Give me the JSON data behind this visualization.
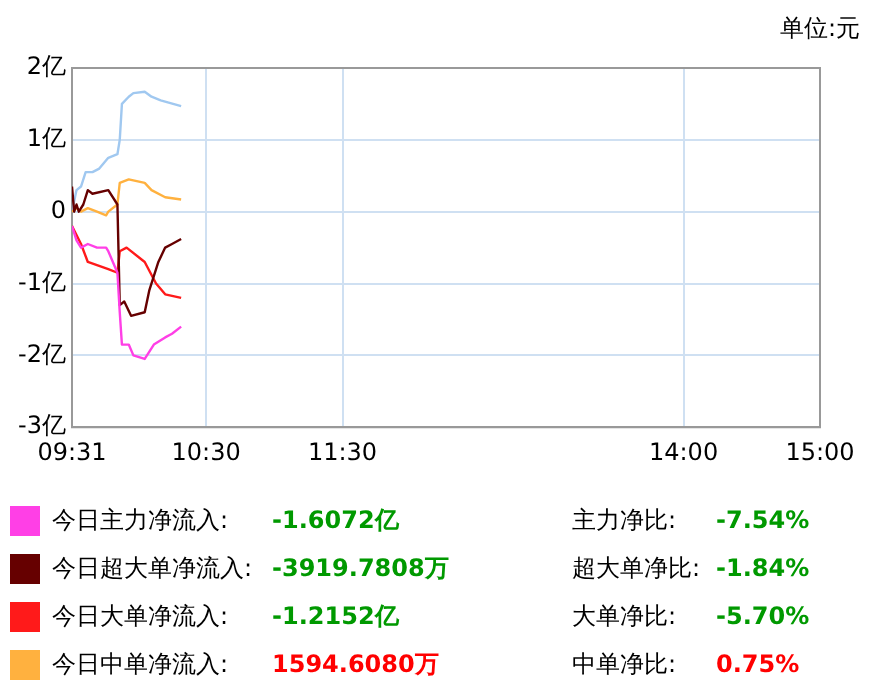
{
  "chart_data": {
    "type": "line",
    "xlim": [
      9.517,
      15
    ],
    "xticks": [
      {
        "value": 9.517,
        "label": "09:31"
      },
      {
        "value": 10.5,
        "label": "10:30"
      },
      {
        "value": 11.5,
        "label": "11:30"
      },
      {
        "value": 14,
        "label": "14:00"
      },
      {
        "value": 15,
        "label": "15:00"
      }
    ],
    "ylim": [
      -3,
      2
    ],
    "yticks": [
      {
        "value": 2,
        "label": "2亿"
      },
      {
        "value": 1,
        "label": "1亿"
      },
      0,
      {
        "value": -1,
        "label": "-1亿"
      },
      {
        "value": -2,
        "label": "-2亿"
      },
      {
        "value": -3,
        "label": "-3亿"
      }
    ],
    "grid": true,
    "legend": "bottom",
    "marker": "none",
    "line_style": "solid",
    "series": [
      {
        "name": "今日主力净流入:",
        "color": "#ff3fe6",
        "x": [
          9.517,
          9.55,
          9.583,
          9.633,
          9.7,
          9.767,
          9.783,
          9.85,
          9.867,
          9.883,
          9.933,
          9.967,
          10.05,
          10.117,
          10.2,
          10.25,
          10.317
        ],
        "values": [
          -0.2,
          -0.4,
          -0.5,
          -0.45,
          -0.5,
          -0.5,
          -0.55,
          -0.85,
          -1.4,
          -1.85,
          -1.85,
          -2,
          -2.05,
          -1.85,
          -1.75,
          -1.7,
          -1.6
        ]
      },
      {
        "name": "今日超大单净流入:",
        "color": "#660000",
        "x": [
          9.517,
          9.533,
          9.55,
          9.567,
          9.6,
          9.633,
          9.667,
          9.783,
          9.85,
          9.867,
          9.9,
          9.95,
          10.05,
          10.083,
          10.15,
          10.2,
          10.25,
          10.317
        ],
        "values": [
          0.35,
          0,
          0.1,
          0,
          0.1,
          0.3,
          0.25,
          0.3,
          0.1,
          -1.3,
          -1.25,
          -1.45,
          -1.4,
          -1.1,
          -0.7,
          -0.5,
          -0.45,
          -0.38
        ]
      },
      {
        "name": "今日大单净流入:",
        "color": "#ff1a1a",
        "x": [
          9.517,
          9.583,
          9.633,
          9.783,
          9.85,
          9.867,
          9.917,
          10.05,
          10.133,
          10.2,
          10.317
        ],
        "values": [
          -0.2,
          -0.45,
          -0.7,
          -0.8,
          -0.85,
          -0.55,
          -0.5,
          -0.7,
          -1,
          -1.15,
          -1.2
        ]
      },
      {
        "name": "今日中单净流入:",
        "color": "#ffb13f",
        "x": [
          9.517,
          9.55,
          9.583,
          9.633,
          9.7,
          9.767,
          9.783,
          9.85,
          9.867,
          9.933,
          10.05,
          10.1,
          10.2,
          10.317
        ],
        "values": [
          0,
          0.05,
          0,
          0.05,
          0,
          -0.05,
          0,
          0.1,
          0.4,
          0.45,
          0.4,
          0.3,
          0.2,
          0.17
        ]
      },
      {
        "color": "#a0c8f0",
        "x": [
          9.517,
          9.55,
          9.583,
          9.617,
          9.667,
          9.717,
          9.783,
          9.85,
          9.867,
          9.883,
          9.933,
          9.967,
          10.05,
          10.1,
          10.167,
          10.317
        ],
        "values": [
          0,
          0.3,
          0.35,
          0.55,
          0.55,
          0.6,
          0.75,
          0.8,
          1,
          1.5,
          1.6,
          1.65,
          1.67,
          1.6,
          1.55,
          1.47
        ]
      }
    ],
    "annotations": [
      "单位:元",
      "-1.6072亿",
      "主力净比:",
      "-7.54%",
      "-3919.7808万",
      "超大单净比:",
      "-1.84%",
      "-1.2152亿",
      "大单净比:",
      "-5.70%",
      "1594.6080万",
      "中单净比:",
      "0.75%"
    ]
  }
}
